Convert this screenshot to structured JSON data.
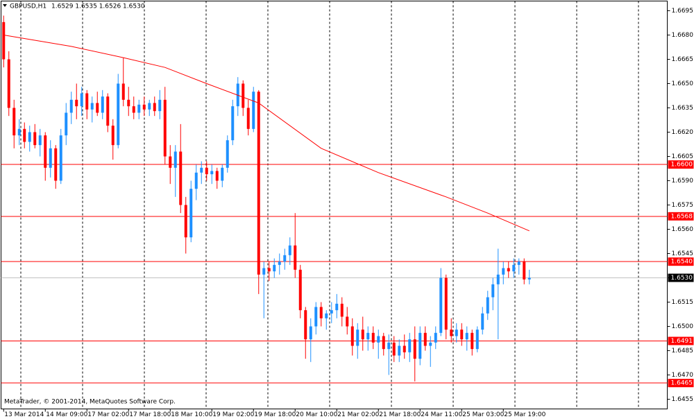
{
  "chart_data": {
    "type": "candlestick",
    "title": "GBPUSD,H1",
    "subtitle": "1.6529 1.6535 1.6526 1.6530",
    "annotation": "MetaTrader, © 2001-2014, MetaQuotes Software Corp.",
    "up_color": "#1e90ff",
    "down_color": "#ff0000",
    "ylim": [
      1.6449,
      1.6701
    ],
    "yticks": [
      1.6695,
      {
        "value": 1.668,
        "label": "1.6680"
      },
      1.6665,
      {
        "value": 1.665,
        "label": "1.6650"
      },
      1.6635,
      {
        "value": 1.662,
        "label": "1.6620"
      },
      1.6605,
      {
        "value": 1.659,
        "label": "1.6590"
      },
      1.6575,
      {
        "value": 1.656,
        "label": "1.6560"
      },
      1.6545,
      {
        "value": 1.653,
        "label": "1.6530"
      },
      1.6515,
      {
        "value": 1.65,
        "label": "1.6500"
      },
      1.6485,
      {
        "value": 1.647,
        "label": "1.6470"
      },
      1.6455
    ],
    "xlim": [
      -0.5,
      127.5
    ],
    "xticks": [
      {
        "value": 0,
        "label": "13 Mar 2014"
      },
      {
        "value": 8,
        "label": "14 Mar 09:00"
      },
      {
        "value": 16,
        "label": "17 Mar 02:00"
      },
      {
        "value": 24,
        "label": "17 Mar 18:00"
      },
      {
        "value": 32,
        "label": "18 Mar 10:00"
      },
      {
        "value": 40,
        "label": "19 Mar 02:00"
      },
      {
        "value": 48,
        "label": "19 Mar 18:00"
      },
      {
        "value": 56,
        "label": "20 Mar 10:00"
      },
      {
        "value": 64,
        "label": "21 Mar 02:00"
      },
      {
        "value": 72,
        "label": "21 Mar 18:00"
      },
      {
        "value": 80,
        "label": "24 Mar 11:00"
      },
      {
        "value": 88,
        "label": "25 Mar 03:00"
      },
      {
        "value": 96,
        "label": "25 Mar 19:00"
      }
    ],
    "ohlc": [
      [
        1.6688,
        1.6692,
        1.666,
        1.6665
      ],
      [
        1.6665,
        1.667,
        1.663,
        1.6635
      ],
      [
        1.6635,
        1.664,
        1.661,
        1.6618
      ],
      [
        1.6618,
        1.6628,
        1.6612,
        1.6622
      ],
      [
        1.6622,
        1.6626,
        1.661,
        1.6614
      ],
      [
        1.6614,
        1.6624,
        1.6608,
        1.662
      ],
      [
        1.662,
        1.6625,
        1.661,
        1.6612
      ],
      [
        1.6612,
        1.6622,
        1.6605,
        1.6618
      ],
      [
        1.6618,
        1.662,
        1.659,
        1.6598
      ],
      [
        1.6598,
        1.6615,
        1.6592,
        1.661
      ],
      [
        1.661,
        1.6612,
        1.6585,
        1.659
      ],
      [
        1.659,
        1.6622,
        1.6588,
        1.6618
      ],
      [
        1.6618,
        1.6638,
        1.6612,
        1.6632
      ],
      [
        1.6632,
        1.6645,
        1.6625,
        1.664
      ],
      [
        1.664,
        1.665,
        1.6628,
        1.6636
      ],
      [
        1.6636,
        1.6648,
        1.663,
        1.6644
      ],
      [
        1.6644,
        1.6646,
        1.6628,
        1.6634
      ],
      [
        1.6634,
        1.6642,
        1.6626,
        1.6638
      ],
      [
        1.6638,
        1.6645,
        1.663,
        1.6632
      ],
      [
        1.6632,
        1.6646,
        1.6628,
        1.6642
      ],
      [
        1.6642,
        1.6644,
        1.662,
        1.6624
      ],
      [
        1.6624,
        1.6628,
        1.6603,
        1.6612
      ],
      [
        1.6612,
        1.6656,
        1.661,
        1.665
      ],
      [
        1.665,
        1.6666,
        1.6636,
        1.664
      ],
      [
        1.664,
        1.6648,
        1.663,
        1.6636
      ],
      [
        1.6636,
        1.6642,
        1.6628,
        1.6632
      ],
      [
        1.6632,
        1.664,
        1.6628,
        1.6637
      ],
      [
        1.6637,
        1.6642,
        1.663,
        1.6634
      ],
      [
        1.6634,
        1.664,
        1.663,
        1.6638
      ],
      [
        1.6638,
        1.6642,
        1.663,
        1.6633
      ],
      [
        1.6633,
        1.6646,
        1.6628,
        1.664
      ],
      [
        1.664,
        1.6648,
        1.66,
        1.6605
      ],
      [
        1.6605,
        1.6612,
        1.6588,
        1.6598
      ],
      [
        1.6598,
        1.6612,
        1.658,
        1.6608
      ],
      [
        1.6608,
        1.6625,
        1.657,
        1.6575
      ],
      [
        1.6575,
        1.658,
        1.6545,
        1.6555
      ],
      [
        1.6555,
        1.659,
        1.6552,
        1.6585
      ],
      [
        1.6585,
        1.66,
        1.6578,
        1.6595
      ],
      [
        1.6595,
        1.6602,
        1.6588,
        1.6598
      ],
      [
        1.6598,
        1.6602,
        1.659,
        1.6594
      ],
      [
        1.6594,
        1.66,
        1.6588,
        1.6596
      ],
      [
        1.6596,
        1.6598,
        1.6585,
        1.659
      ],
      [
        1.659,
        1.66,
        1.6586,
        1.6598
      ],
      [
        1.6598,
        1.6618,
        1.6595,
        1.6615
      ],
      [
        1.6615,
        1.664,
        1.6612,
        1.6636
      ],
      [
        1.6636,
        1.6654,
        1.663,
        1.665
      ],
      [
        1.665,
        1.6652,
        1.663,
        1.6635
      ],
      [
        1.6635,
        1.664,
        1.6618,
        1.6622
      ],
      [
        1.6622,
        1.6648,
        1.662,
        1.6645
      ],
      [
        1.6645,
        1.6646,
        1.652,
        1.6532
      ],
      [
        1.6532,
        1.654,
        1.6505,
        1.6536
      ],
      [
        1.6536,
        1.654,
        1.6528,
        1.6534
      ],
      [
        1.6534,
        1.6542,
        1.653,
        1.6538
      ],
      [
        1.6538,
        1.6545,
        1.6532,
        1.654
      ],
      [
        1.654,
        1.6548,
        1.6535,
        1.6544
      ],
      [
        1.6544,
        1.6555,
        1.6538,
        1.655
      ],
      [
        1.655,
        1.657,
        1.653,
        1.6535
      ],
      [
        1.6535,
        1.6538,
        1.6505,
        1.651
      ],
      [
        1.651,
        1.6512,
        1.648,
        1.6492
      ],
      [
        1.6492,
        1.6505,
        1.6478,
        1.65
      ],
      [
        1.65,
        1.6515,
        1.6495,
        1.6512
      ],
      [
        1.6512,
        1.6515,
        1.65,
        1.6505
      ],
      [
        1.6505,
        1.651,
        1.6498,
        1.6508
      ],
      [
        1.6508,
        1.6515,
        1.6502,
        1.651
      ],
      [
        1.651,
        1.652,
        1.6505,
        1.6514
      ],
      [
        1.6514,
        1.6518,
        1.65,
        1.6506
      ],
      [
        1.6506,
        1.6512,
        1.6495,
        1.65
      ],
      [
        1.65,
        1.6505,
        1.6482,
        1.6488
      ],
      [
        1.6488,
        1.6502,
        1.648,
        1.6498
      ],
      [
        1.6498,
        1.6506,
        1.6485,
        1.6492
      ],
      [
        1.6492,
        1.65,
        1.6485,
        1.6496
      ],
      [
        1.6496,
        1.65,
        1.6486,
        1.649
      ],
      [
        1.649,
        1.6498,
        1.648,
        1.6494
      ],
      [
        1.6494,
        1.6496,
        1.6482,
        1.6486
      ],
      [
        1.6486,
        1.6495,
        1.647,
        1.649
      ],
      [
        1.649,
        1.6494,
        1.6478,
        1.6482
      ],
      [
        1.6482,
        1.6492,
        1.6478,
        1.6488
      ],
      [
        1.6488,
        1.6495,
        1.648,
        1.6484
      ],
      [
        1.6484,
        1.6496,
        1.6478,
        1.6492
      ],
      [
        1.6492,
        1.65,
        1.6466,
        1.648
      ],
      [
        1.648,
        1.65,
        1.6476,
        1.6496
      ],
      [
        1.6496,
        1.65,
        1.6485,
        1.6488
      ],
      [
        1.6488,
        1.6494,
        1.6475,
        1.649
      ],
      [
        1.649,
        1.65,
        1.6486,
        1.6496
      ],
      [
        1.6496,
        1.6536,
        1.6494,
        1.653
      ],
      [
        1.653,
        1.6532,
        1.6492,
        1.6498
      ],
      [
        1.6498,
        1.6505,
        1.649,
        1.6494
      ],
      [
        1.6494,
        1.6502,
        1.649,
        1.6498
      ],
      [
        1.6498,
        1.6502,
        1.6488,
        1.6492
      ],
      [
        1.6492,
        1.65,
        1.6485,
        1.6496
      ],
      [
        1.6496,
        1.6498,
        1.6482,
        1.6486
      ],
      [
        1.6486,
        1.65,
        1.6484,
        1.6498
      ],
      [
        1.6498,
        1.6512,
        1.6495,
        1.6508
      ],
      [
        1.6508,
        1.6522,
        1.6504,
        1.6518
      ],
      [
        1.6518,
        1.653,
        1.651,
        1.6526
      ],
      [
        1.6526,
        1.6548,
        1.6492,
        1.6532
      ],
      [
        1.6532,
        1.654,
        1.6526,
        1.6536
      ],
      [
        1.6536,
        1.654,
        1.653,
        1.6534
      ],
      [
        1.6534,
        1.6542,
        1.653,
        1.6538
      ],
      [
        1.6538,
        1.6542,
        1.6532,
        1.654
      ],
      [
        1.654,
        1.6542,
        1.6526,
        1.6529
      ],
      [
        1.6529,
        1.6535,
        1.6526,
        1.653
      ]
    ],
    "moving_average": {
      "color": "#ff0000",
      "x": [
        0,
        13,
        23,
        31,
        39,
        49,
        61,
        72,
        85,
        93,
        101
      ],
      "values": [
        1.668,
        1.6673,
        1.6666,
        1.666,
        1.665,
        1.6638,
        1.661,
        1.6595,
        1.658,
        1.657,
        1.6559
      ]
    },
    "levels": [
      {
        "value": 1.66,
        "label": "1.6600"
      },
      {
        "value": 1.6568,
        "label": "1.6568"
      },
      {
        "value": 1.654,
        "label": "1.6540"
      },
      {
        "value": 1.6491,
        "label": "1.6491"
      },
      {
        "value": 1.6465,
        "label": "1.6465"
      }
    ],
    "level_color": "#ff0000",
    "current_price": {
      "value": 1.653,
      "label": "1.6530"
    }
  }
}
